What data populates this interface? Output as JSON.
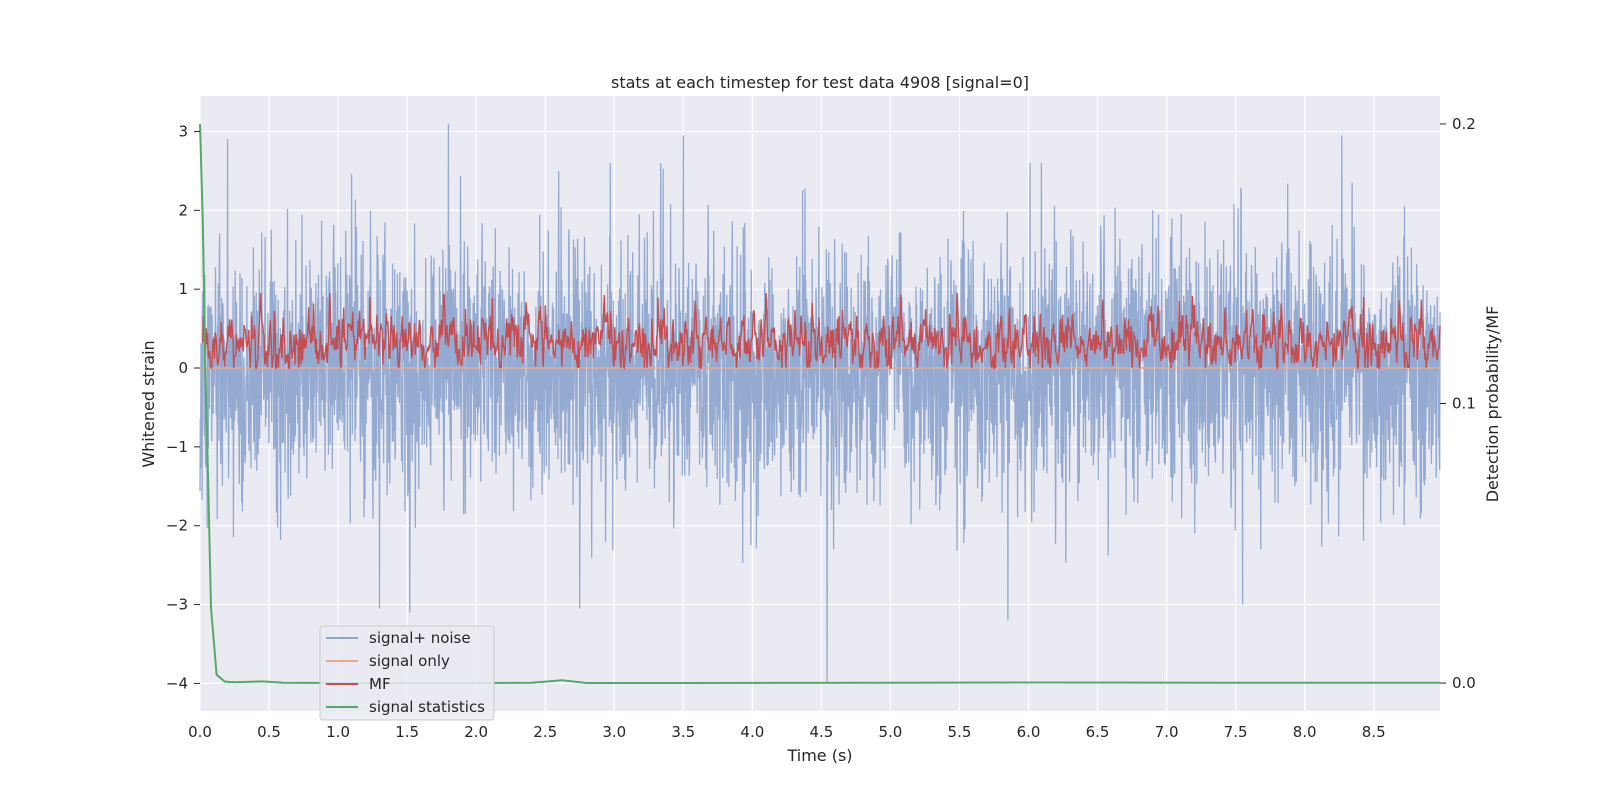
{
  "chart_data": {
    "type": "line",
    "title": "stats at each timestep for test data 4908 [signal=0]",
    "xlabel": "Time (s)",
    "ylabel": "Whitened strain",
    "ylabel_right": "Detection probability/MF",
    "xlim": [
      0.0,
      8.98
    ],
    "ylim": [
      -4.35,
      3.45
    ],
    "ylim_right": [
      -0.01,
      0.21
    ],
    "x_ticks": [
      "0.0",
      "0.5",
      "1.0",
      "1.5",
      "2.0",
      "2.5",
      "3.0",
      "3.5",
      "4.0",
      "4.5",
      "5.0",
      "5.5",
      "6.0",
      "6.5",
      "7.0",
      "7.5",
      "8.0",
      "8.5"
    ],
    "y_ticks": [
      "−4",
      "−3",
      "−2",
      "−1",
      "0",
      "1",
      "2",
      "3"
    ],
    "y_ticks_right": [
      "0.0",
      "0.1",
      "0.2"
    ],
    "grid": true,
    "legend_position": "lower-left",
    "colors": {
      "noise": "#8fa6cd",
      "signal": "#e8a98f",
      "mf": "#c44e52",
      "stats": "#55a868",
      "background": "#eaeaf2",
      "grid": "#ffffff"
    },
    "series": [
      {
        "name": "signal+ noise",
        "axis": "left",
        "color": "#8fa6cd",
        "description": "whitened noise, roughly within -2.5..2.5 with peaks to about 3.1 and a dip to about -4.0 near t=4.54",
        "peaks": [
          [
            0.2,
            2.9
          ],
          [
            1.8,
            3.1
          ],
          [
            3.5,
            2.95
          ],
          [
            8.27,
            2.95
          ],
          [
            4.54,
            -4.0
          ],
          [
            1.3,
            -3.05
          ],
          [
            1.52,
            -3.1
          ],
          [
            2.75,
            -3.05
          ],
          [
            5.85,
            -3.2
          ],
          [
            7.55,
            -3.0
          ]
        ]
      },
      {
        "name": "signal only",
        "axis": "left",
        "color": "#e8a98f",
        "description": "flat line at 0 (signal=0)",
        "x": [
          0.0,
          8.98
        ],
        "values": [
          0.0,
          0.0
        ]
      },
      {
        "name": "MF",
        "axis": "left",
        "color": "#c44e52",
        "description": "matched-filter output fluctuating between about 0 and 0.95"
      },
      {
        "name": "signal statistics",
        "axis": "right",
        "color": "#55a868",
        "x": [
          0.0,
          0.02,
          0.04,
          0.06,
          0.08,
          0.12,
          0.18,
          0.25,
          0.45,
          0.6,
          1.0,
          2.0,
          2.4,
          2.62,
          2.8,
          3.5,
          6.2,
          7.5,
          8.98
        ],
        "values": [
          0.2,
          0.165,
          0.11,
          0.07,
          0.027,
          0.003,
          0.0005,
          0.0003,
          0.0006,
          0.0001,
          0.0,
          0.0,
          0.0001,
          0.001,
          0.0,
          0.0,
          0.0002,
          0.0001,
          0.0001
        ]
      }
    ]
  }
}
